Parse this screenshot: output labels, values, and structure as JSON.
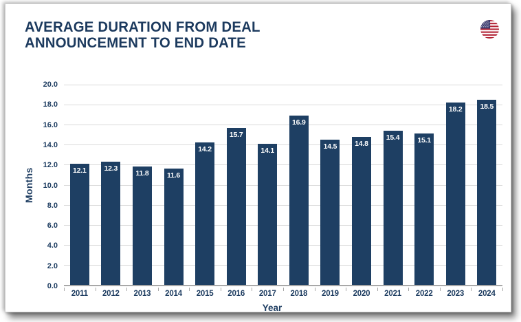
{
  "header": {
    "title_lines": [
      "AVERAGE DURATION FROM DEAL",
      "ANNOUNCEMENT TO END DATE"
    ],
    "flag_icon": "us-flag-icon"
  },
  "colors": {
    "bar": "#1e3f63",
    "title_text": "#1c3a5e",
    "axis_text": "#1e3d61",
    "bar_value_text": "#ffffff",
    "gridline": "#dadada",
    "axis_line": "#a8a8a8",
    "flag_red": "#b22234",
    "flag_blue": "#3c3b6e"
  },
  "chart_data": {
    "type": "bar",
    "title": "AVERAGE DURATION FROM DEAL ANNOUNCEMENT TO END DATE",
    "categories": [
      "2011",
      "2012",
      "2013",
      "2014",
      "2015",
      "2016",
      "2017",
      "2018",
      "2019",
      "2020",
      "2021",
      "2022",
      "2023",
      "2024"
    ],
    "values": [
      12.1,
      12.3,
      11.8,
      11.6,
      14.2,
      15.7,
      14.1,
      16.9,
      14.5,
      14.8,
      15.4,
      15.1,
      18.2,
      18.5
    ],
    "xlabel": "Year",
    "ylabel": "Months",
    "ylim": [
      0,
      20
    ],
    "ytick_step": 2,
    "ytick_decimals": 1,
    "value_label_decimals": 1,
    "grid": true,
    "legend": "none",
    "bar_color": "#1e3f63",
    "value_label_color": "#ffffff"
  }
}
